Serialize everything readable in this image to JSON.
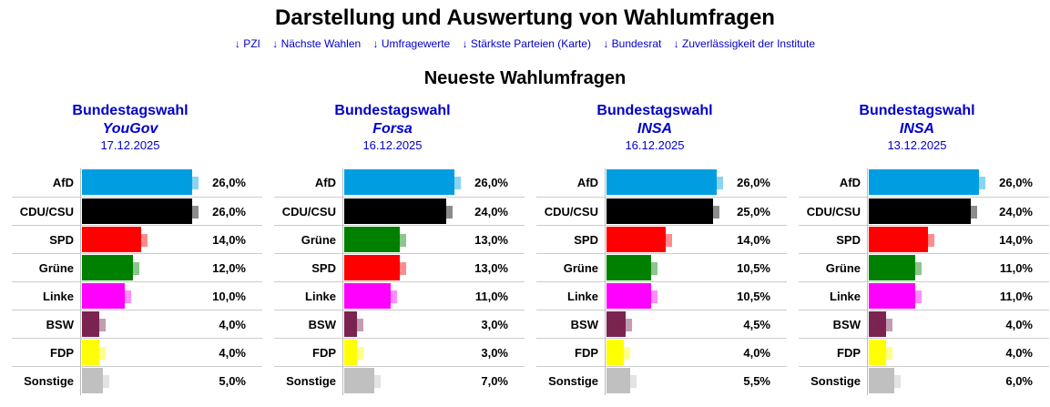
{
  "page": {
    "title": "Darstellung und Auswertung von Wahlumfragen",
    "subtitle": "Neueste Wahlumfragen"
  },
  "nav": [
    "↓ PZI",
    "↓ Nächste Wahlen",
    "↓ Umfragewerte",
    "↓ Stärkste Parteien (Karte)",
    "↓ Bundesrat",
    "↓ Zuverlässigkeit der Institute"
  ],
  "colors": {
    "AfD": "#009ee0",
    "CDU/CSU": "#000000",
    "SPD": "#ff0000",
    "Grüne": "#008000",
    "Linke": "#ff00ff",
    "BSW": "#7b2450",
    "FDP": "#ffff00",
    "Sonstige": "#c0c0c0",
    "link": "#0000cc"
  },
  "scale_max": 30,
  "polls": [
    {
      "election": "Bundestagswahl",
      "institute": "YouGov",
      "date": "17.12.2025",
      "rows": [
        {
          "party": "AfD",
          "label": "26,0%",
          "value": 26.0
        },
        {
          "party": "CDU/CSU",
          "label": "26,0%",
          "value": 26.0
        },
        {
          "party": "SPD",
          "label": "14,0%",
          "value": 14.0
        },
        {
          "party": "Grüne",
          "label": "12,0%",
          "value": 12.0
        },
        {
          "party": "Linke",
          "label": "10,0%",
          "value": 10.0
        },
        {
          "party": "BSW",
          "label": "4,0%",
          "value": 4.0
        },
        {
          "party": "FDP",
          "label": "4,0%",
          "value": 4.0
        },
        {
          "party": "Sonstige",
          "label": "5,0%",
          "value": 5.0
        }
      ]
    },
    {
      "election": "Bundestagswahl",
      "institute": "Forsa",
      "date": "16.12.2025",
      "rows": [
        {
          "party": "AfD",
          "label": "26,0%",
          "value": 26.0
        },
        {
          "party": "CDU/CSU",
          "label": "24,0%",
          "value": 24.0
        },
        {
          "party": "Grüne",
          "label": "13,0%",
          "value": 13.0
        },
        {
          "party": "SPD",
          "label": "13,0%",
          "value": 13.0
        },
        {
          "party": "Linke",
          "label": "11,0%",
          "value": 11.0
        },
        {
          "party": "BSW",
          "label": "3,0%",
          "value": 3.0
        },
        {
          "party": "FDP",
          "label": "3,0%",
          "value": 3.0
        },
        {
          "party": "Sonstige",
          "label": "7,0%",
          "value": 7.0
        }
      ]
    },
    {
      "election": "Bundestagswahl",
      "institute": "INSA",
      "date": "16.12.2025",
      "rows": [
        {
          "party": "AfD",
          "label": "26,0%",
          "value": 26.0
        },
        {
          "party": "CDU/CSU",
          "label": "25,0%",
          "value": 25.0
        },
        {
          "party": "SPD",
          "label": "14,0%",
          "value": 14.0
        },
        {
          "party": "Grüne",
          "label": "10,5%",
          "value": 10.5
        },
        {
          "party": "Linke",
          "label": "10,5%",
          "value": 10.5
        },
        {
          "party": "BSW",
          "label": "4,5%",
          "value": 4.5
        },
        {
          "party": "FDP",
          "label": "4,0%",
          "value": 4.0
        },
        {
          "party": "Sonstige",
          "label": "5,5%",
          "value": 5.5
        }
      ]
    },
    {
      "election": "Bundestagswahl",
      "institute": "INSA",
      "date": "13.12.2025",
      "rows": [
        {
          "party": "AfD",
          "label": "26,0%",
          "value": 26.0
        },
        {
          "party": "CDU/CSU",
          "label": "24,0%",
          "value": 24.0
        },
        {
          "party": "SPD",
          "label": "14,0%",
          "value": 14.0
        },
        {
          "party": "Grüne",
          "label": "11,0%",
          "value": 11.0
        },
        {
          "party": "Linke",
          "label": "11,0%",
          "value": 11.0
        },
        {
          "party": "BSW",
          "label": "4,0%",
          "value": 4.0
        },
        {
          "party": "FDP",
          "label": "4,0%",
          "value": 4.0
        },
        {
          "party": "Sonstige",
          "label": "6,0%",
          "value": 6.0
        }
      ]
    }
  ]
}
